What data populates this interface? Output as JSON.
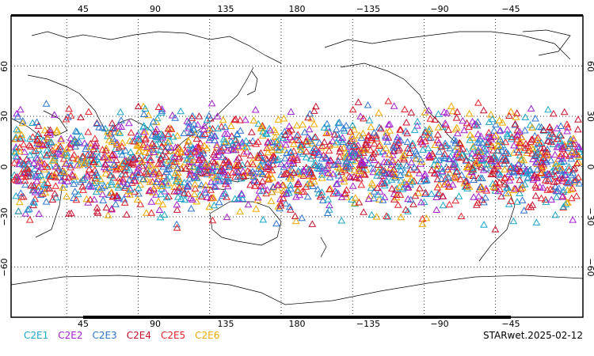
{
  "map": {
    "top_lon_labels": [
      "45",
      "90",
      "135",
      "180",
      "−135",
      "−90",
      "−45"
    ],
    "bottom_lon_labels": [
      "45",
      "90",
      "135",
      "180",
      "−135",
      "−90",
      "−45"
    ],
    "lat_labels": [
      "60",
      "30",
      "0",
      "−30",
      "−60"
    ],
    "grid": true,
    "projection": "Plate carrée, centered near 180°",
    "lon_range": [
      10,
      370
    ],
    "lat_range": [
      -90,
      90
    ],
    "marker_symbol": "open triangle"
  },
  "legend": {
    "items": [
      {
        "label": "C2E1",
        "color": "#1aa6c8"
      },
      {
        "label": "C2E2",
        "color": "#a51fd0"
      },
      {
        "label": "C2E3",
        "color": "#2f74d0"
      },
      {
        "label": "C2E4",
        "color": "#c8102e"
      },
      {
        "label": "C2E5",
        "color": "#e5202a"
      },
      {
        "label": "C2E6",
        "color": "#f2a900"
      }
    ]
  },
  "caption": "STARwet.2025-02-12",
  "data_extent": {
    "lat_min": -40,
    "lat_max": 45
  }
}
